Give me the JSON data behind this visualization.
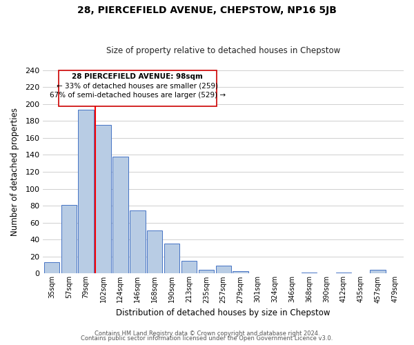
{
  "title": "28, PIERCEFIELD AVENUE, CHEPSTOW, NP16 5JB",
  "subtitle": "Size of property relative to detached houses in Chepstow",
  "xlabel": "Distribution of detached houses by size in Chepstow",
  "ylabel": "Number of detached properties",
  "bar_labels": [
    "35sqm",
    "57sqm",
    "79sqm",
    "102sqm",
    "124sqm",
    "146sqm",
    "168sqm",
    "190sqm",
    "213sqm",
    "235sqm",
    "257sqm",
    "279sqm",
    "301sqm",
    "324sqm",
    "346sqm",
    "368sqm",
    "390sqm",
    "412sqm",
    "435sqm",
    "457sqm",
    "479sqm"
  ],
  "bar_heights": [
    13,
    81,
    193,
    175,
    138,
    74,
    51,
    35,
    15,
    4,
    9,
    3,
    0,
    0,
    0,
    1,
    0,
    1,
    0,
    4,
    0
  ],
  "bar_color": "#b8cce4",
  "bar_edge_color": "#4472c4",
  "vline_index": 3,
  "vline_color": "#ff0000",
  "ylim": [
    0,
    240
  ],
  "yticks": [
    0,
    20,
    40,
    60,
    80,
    100,
    120,
    140,
    160,
    180,
    200,
    220,
    240
  ],
  "annotation_title": "28 PIERCEFIELD AVENUE: 98sqm",
  "annotation_line1": "← 33% of detached houses are smaller (259)",
  "annotation_line2": "67% of semi-detached houses are larger (529) →",
  "footer1": "Contains HM Land Registry data © Crown copyright and database right 2024.",
  "footer2": "Contains public sector information licensed under the Open Government Licence v3.0.",
  "background_color": "#ffffff",
  "grid_color": "#c8c8c8"
}
